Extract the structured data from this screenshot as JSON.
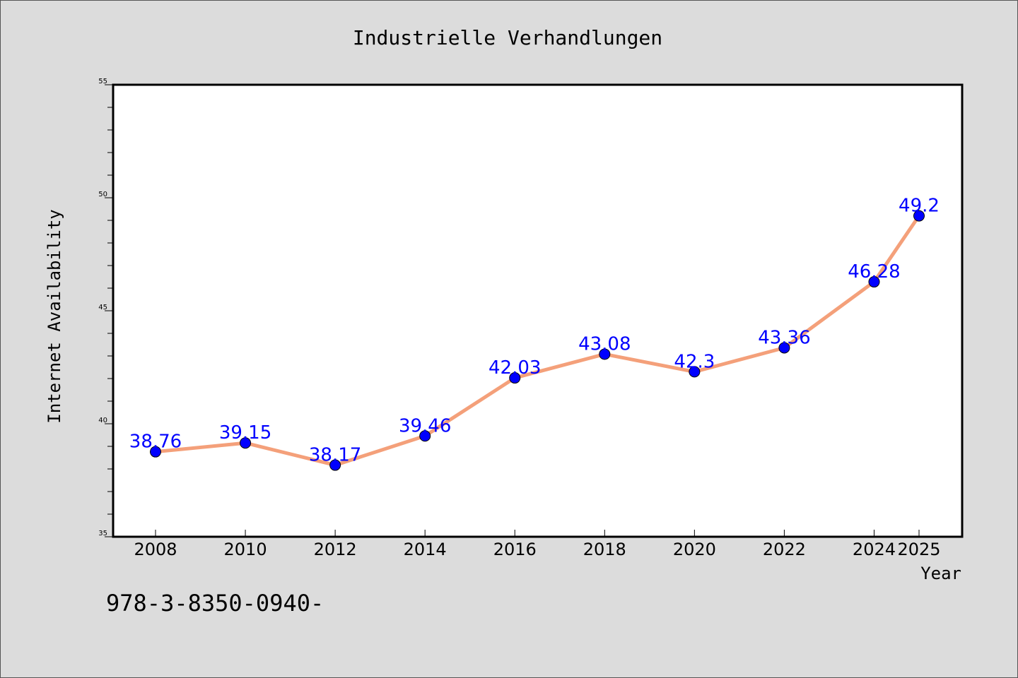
{
  "chart_data": {
    "type": "line",
    "title": "Industrielle Verhandlungen",
    "xlabel": "Year",
    "ylabel": "Internet Availability",
    "categories": [
      "2008",
      "2010",
      "2012",
      "2014",
      "2016",
      "2018",
      "2020",
      "2022",
      "2024",
      "2025"
    ],
    "values": [
      38.76,
      39.15,
      38.17,
      39.46,
      42.03,
      43.08,
      42.3,
      43.36,
      46.28,
      49.2
    ],
    "value_labels": [
      "38.76",
      "39.15",
      "38.17",
      "39.46",
      "42.03",
      "43.08",
      "42.3",
      "43.36",
      "46.28",
      "49.2"
    ],
    "ylim": [
      35,
      55
    ],
    "yticks": [
      "35",
      "40",
      "45",
      "50",
      "55"
    ],
    "grid": false,
    "line_color": "#f4a07a",
    "marker_color": "#0000ff",
    "label_color": "#0000ff"
  },
  "footer": {
    "isbn": "978-3-8350-0940-"
  }
}
